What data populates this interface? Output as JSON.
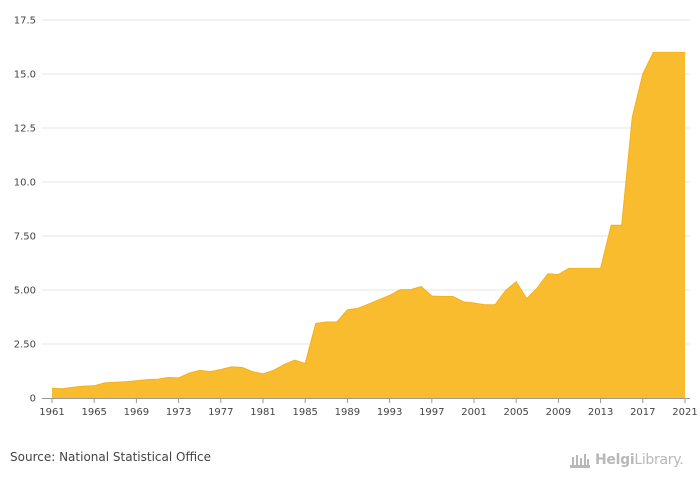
{
  "chart_data": {
    "type": "area",
    "title": "",
    "xlabel": "",
    "ylabel": "",
    "xlim": [
      1961,
      2021
    ],
    "ylim": [
      0,
      17.5
    ],
    "grid": true,
    "x_ticks": [
      "1961",
      "1965",
      "1969",
      "1973",
      "1977",
      "1981",
      "1985",
      "1989",
      "1993",
      "1997",
      "2001",
      "2005",
      "2009",
      "2013",
      "2017",
      "2021"
    ],
    "y_ticks": [
      "0",
      "2.50",
      "5.00",
      "7.50",
      "10.0",
      "12.5",
      "15.0",
      "17.5"
    ],
    "y_tick_values": [
      0,
      2.5,
      5,
      7.5,
      10,
      12.5,
      15,
      17.5
    ],
    "x": [
      1961,
      1962,
      1963,
      1964,
      1965,
      1966,
      1967,
      1968,
      1969,
      1970,
      1971,
      1972,
      1973,
      1974,
      1975,
      1976,
      1977,
      1978,
      1979,
      1980,
      1981,
      1982,
      1983,
      1984,
      1985,
      1986,
      1987,
      1988,
      1989,
      1990,
      1991,
      1992,
      1993,
      1994,
      1995,
      1996,
      1997,
      1998,
      1999,
      2000,
      2001,
      2002,
      2003,
      2004,
      2005,
      2006,
      2007,
      2008,
      2009,
      2010,
      2011,
      2012,
      2013,
      2014,
      2015,
      2016,
      2017,
      2018,
      2019,
      2020,
      2021
    ],
    "series": [
      {
        "values": [
          0.45,
          0.43,
          0.5,
          0.55,
          0.57,
          0.7,
          0.73,
          0.75,
          0.8,
          0.85,
          0.87,
          0.95,
          0.93,
          1.15,
          1.28,
          1.22,
          1.32,
          1.44,
          1.42,
          1.22,
          1.12,
          1.28,
          1.55,
          1.75,
          1.6,
          3.45,
          3.52,
          3.52,
          4.08,
          4.15,
          4.35,
          4.55,
          4.75,
          5.02,
          5.02,
          5.16,
          4.72,
          4.7,
          4.7,
          4.45,
          4.4,
          4.32,
          4.32,
          4.98,
          5.38,
          4.6,
          5.1,
          5.75,
          5.72,
          6.0,
          6.0,
          6.0,
          6.0,
          8.0,
          8.0,
          13.0,
          15.0,
          16.0,
          16.0,
          16.0,
          16.0
        ],
        "color": "#f9bc2e"
      }
    ]
  },
  "footer": {
    "source": "Source: National Statistical Office",
    "brand_name_bold": "Helgi",
    "brand_name_rest": "Library."
  },
  "colors": {
    "area_fill": "#f9bc2e",
    "grid": "#e6e6e6",
    "axis": "#999999",
    "brand": "#b8b8b8"
  }
}
